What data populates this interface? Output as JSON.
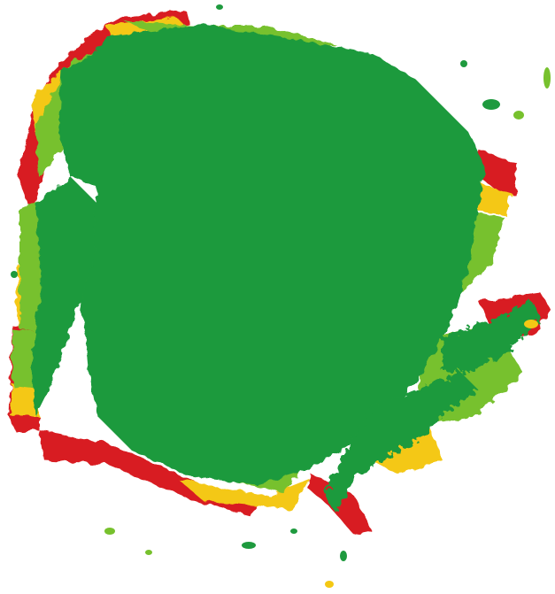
{
  "map": {
    "kind": "survey coverage density map",
    "background": "#ffffff",
    "legend_visible": false,
    "text_visible": false,
    "palette": [
      {
        "level": "high",
        "color": "#1e9a3e"
      },
      {
        "level": "medium-high",
        "color": "#77c12d"
      },
      {
        "level": "medium",
        "color": "#f4c814"
      },
      {
        "level": "low",
        "color": "#d81f22"
      }
    ]
  }
}
